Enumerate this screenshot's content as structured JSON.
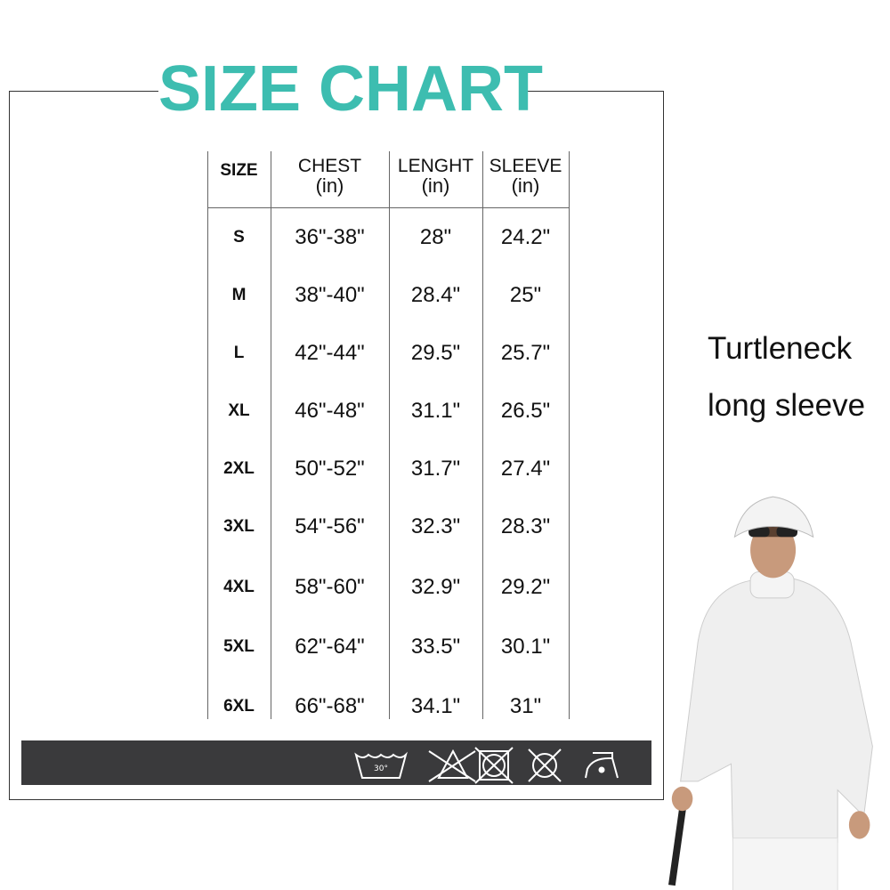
{
  "title": "SIZE CHART",
  "accent_color": "#3dbdb0",
  "table": {
    "headers": [
      {
        "label": "SIZE",
        "unit": ""
      },
      {
        "label": "CHEST",
        "unit": "(in)"
      },
      {
        "label": "LENGHT",
        "unit": "(in)"
      },
      {
        "label": "SLEEVE",
        "unit": "(in)"
      }
    ],
    "rows": [
      {
        "size": "S",
        "chest": "36\"-38\"",
        "length": "28\"",
        "sleeve": "24.2\""
      },
      {
        "size": "M",
        "chest": "38\"-40\"",
        "length": "28.4\"",
        "sleeve": "25\""
      },
      {
        "size": "L",
        "chest": "42\"-44\"",
        "length": "29.5\"",
        "sleeve": "25.7\""
      },
      {
        "size": "XL",
        "chest": "46\"-48\"",
        "length": "31.1\"",
        "sleeve": "26.5\""
      },
      {
        "size": "2XL",
        "chest": "50\"-52\"",
        "length": "31.7\"",
        "sleeve": "27.4\""
      },
      {
        "size": "3XL",
        "chest": "54\"-56\"",
        "length": "32.3\"",
        "sleeve": "28.3\""
      },
      {
        "size": "4XL",
        "chest": "58\"-60\"",
        "length": "32.9\"",
        "sleeve": "29.2\""
      },
      {
        "size": "5XL",
        "chest": "62\"-64\"",
        "length": "33.5\"",
        "sleeve": "30.1\""
      },
      {
        "size": "6XL",
        "chest": "66\"-68\"",
        "length": "34.1\"",
        "sleeve": "31\""
      }
    ]
  },
  "care_icons": [
    "wash-30-icon",
    "do-not-bleach-icon",
    "do-not-tumble-dry-icon",
    "do-not-dry-clean-icon",
    "iron-low-icon"
  ],
  "care_wash_temp": "30°",
  "product": {
    "line1": "Turtleneck",
    "line2": "long sleeve"
  }
}
